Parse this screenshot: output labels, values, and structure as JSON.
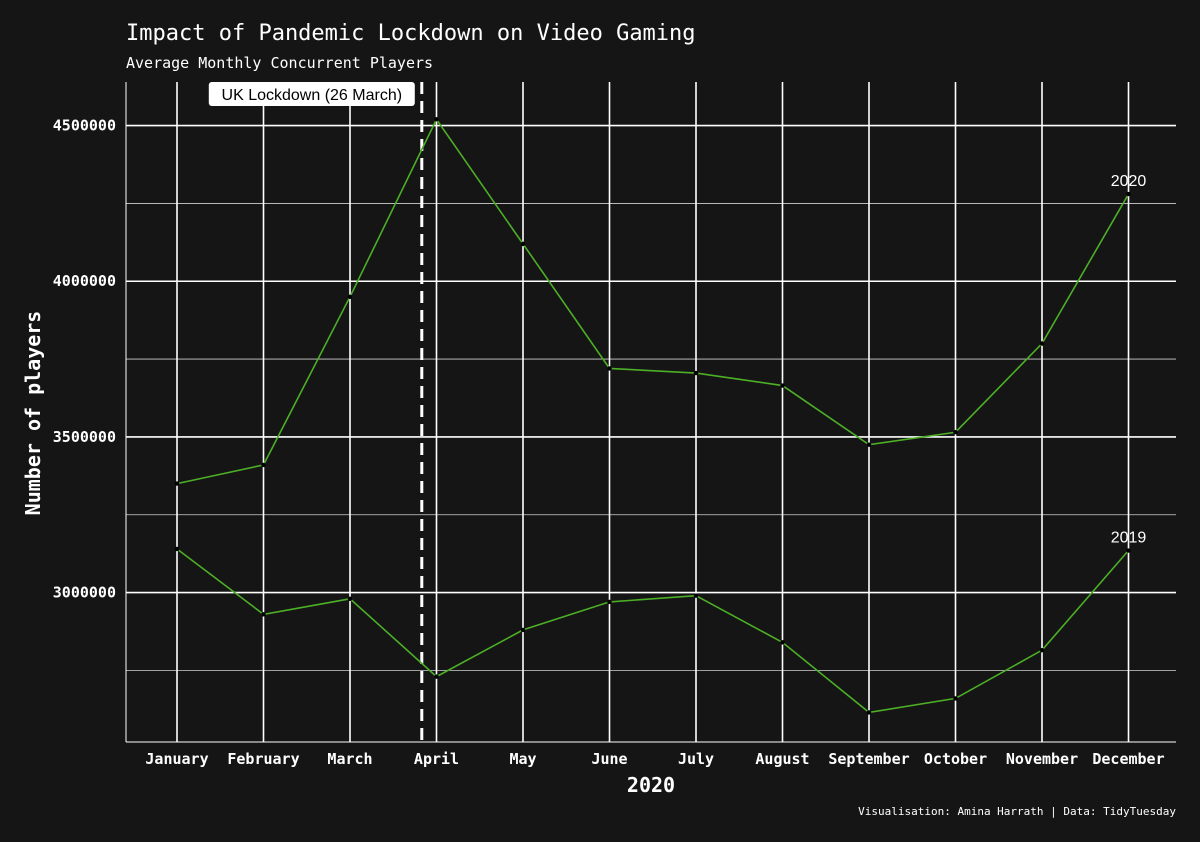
{
  "chart_data": {
    "type": "line",
    "title": "Impact of Pandemic Lockdown on Video Gaming",
    "subtitle": "Average Monthly Concurrent Players",
    "xlabel": "2020",
    "ylabel": "Number of players",
    "caption": "Visualisation: Amina Harrath | Data: TidyTuesday",
    "categories": [
      "January",
      "February",
      "March",
      "April",
      "May",
      "June",
      "July",
      "August",
      "September",
      "October",
      "November",
      "December"
    ],
    "series": [
      {
        "name": "2020",
        "color": "#4caf26",
        "values": [
          3350000,
          3410000,
          3950000,
          4520000,
          4120000,
          3720000,
          3705000,
          3665000,
          3475000,
          3515000,
          3800000,
          4280000
        ]
      },
      {
        "name": "2019",
        "color": "#4caf26",
        "values": [
          3140000,
          2930000,
          2980000,
          2730000,
          2880000,
          2970000,
          2990000,
          2840000,
          2615000,
          2660000,
          2815000,
          3135000
        ]
      }
    ],
    "yticks": [
      3000000,
      3500000,
      4000000,
      4500000
    ],
    "ytick_labels": [
      "3000000",
      "3500000",
      "4000000",
      "4500000"
    ],
    "ylim": [
      2520000,
      4640000
    ],
    "grid": true,
    "annotation": {
      "label": "UK Lockdown (26 March)",
      "x_month_position": 2.83
    },
    "colors": {
      "background": "#151515",
      "grid": "#ffffff",
      "line": "#4caf26",
      "text": "#ffffff"
    }
  }
}
